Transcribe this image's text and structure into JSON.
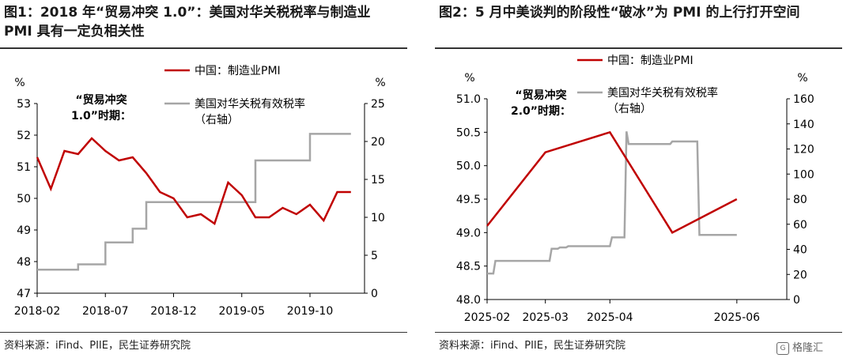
{
  "figures": [
    {
      "title": "图1：2018 年“贸易冲突 1.0”：美国对华关税税率与制造业 PMI 具有一定负相关性",
      "source": "资料来源：iFind、PIIE，民生证券研究院"
    },
    {
      "title": "图2：5 月中美谈判的阶段性“破冰”为 PMI 的上行打开空间",
      "source": "资料来源：iFind、PIIE，民生证券研究院"
    }
  ],
  "watermark": "格隆汇",
  "colors": {
    "pmi": "#c00000",
    "tariff": "#a6a6a6",
    "axis": "#000000"
  },
  "chart_data": [
    {
      "type": "line",
      "annotation_line1": "“贸易冲突",
      "annotation_line2": "1.0”时期：",
      "y_left_unit": "%",
      "y_right_unit": "%",
      "ylim_left": [
        47,
        53
      ],
      "ylim_right": [
        0,
        25
      ],
      "y_left_ticks": [
        "47",
        "48",
        "49",
        "50",
        "51",
        "52",
        "53"
      ],
      "y_right_ticks": [
        "0",
        "5",
        "10",
        "15",
        "20",
        "25"
      ],
      "x_ticks": [
        "2018-02",
        "2018-07",
        "2018-12",
        "2019-05",
        "2019-10"
      ],
      "legend_position": "top-right",
      "series": [
        {
          "name": "中国：制造业PMI",
          "axis": "left",
          "values": [
            51.3,
            50.3,
            51.5,
            51.4,
            51.9,
            51.5,
            51.2,
            51.3,
            50.8,
            50.2,
            50.0,
            49.4,
            49.5,
            49.2,
            50.5,
            50.1,
            49.4,
            49.4,
            49.7,
            49.5,
            49.8,
            49.3,
            50.2,
            50.2
          ]
        },
        {
          "name": "美国对华关税有效税率",
          "name_line2": "（右轴）",
          "axis": "right",
          "values": [
            3.1,
            3.1,
            3.1,
            3.8,
            3.8,
            6.7,
            6.7,
            8.5,
            12.0,
            12.0,
            12.0,
            12.0,
            12.0,
            12.0,
            12.0,
            12.0,
            17.5,
            17.5,
            17.5,
            17.5,
            21.0,
            21.0,
            21.0,
            21.0
          ]
        }
      ]
    },
    {
      "type": "line",
      "annotation_line1": "“贸易冲突",
      "annotation_line2": "2.0”时期：",
      "y_left_unit": "%",
      "y_right_unit": "%",
      "ylim_left": [
        48.0,
        51.0
      ],
      "ylim_right": [
        0,
        160
      ],
      "y_left_ticks": [
        "48.0",
        "48.5",
        "49.0",
        "49.5",
        "50.0",
        "50.5",
        "51.0"
      ],
      "y_right_ticks": [
        "0",
        "20",
        "40",
        "60",
        "80",
        "100",
        "120",
        "140",
        "160"
      ],
      "x_ticks": [
        "2025-02",
        "2025-03",
        "2025-04",
        "2025-06"
      ],
      "legend_position": "top-right",
      "series": [
        {
          "name": "中国：制造业PMI",
          "axis": "left",
          "points": [
            [
              "2025-02-01",
              49.1
            ],
            [
              "2025-03-01",
              50.2
            ],
            [
              "2025-04-01",
              50.5
            ],
            [
              "2025-05-01",
              49.0
            ],
            [
              "2025-06-01",
              49.5
            ]
          ]
        },
        {
          "name": "美国对华关税有效税率",
          "name_line2": "（右轴）",
          "axis": "right",
          "points": [
            [
              "2025-02-01",
              20.7
            ],
            [
              "2025-02-04",
              20.7
            ],
            [
              "2025-02-05",
              30.8
            ],
            [
              "2025-03-03",
              30.8
            ],
            [
              "2025-03-04",
              40.5
            ],
            [
              "2025-03-07",
              40.5
            ],
            [
              "2025-03-08",
              41.5
            ],
            [
              "2025-03-11",
              41.5
            ],
            [
              "2025-03-12",
              42.5
            ],
            [
              "2025-04-01",
              42.5
            ],
            [
              "2025-04-02",
              49.5
            ],
            [
              "2025-04-08",
              49.5
            ],
            [
              "2025-04-09",
              134.0
            ],
            [
              "2025-04-10",
              124.0
            ],
            [
              "2025-04-30",
              124.0
            ],
            [
              "2025-05-01",
              126.0
            ],
            [
              "2025-05-13",
              126.0
            ],
            [
              "2025-05-14",
              51.5
            ],
            [
              "2025-06-01",
              51.5
            ]
          ]
        }
      ]
    }
  ]
}
